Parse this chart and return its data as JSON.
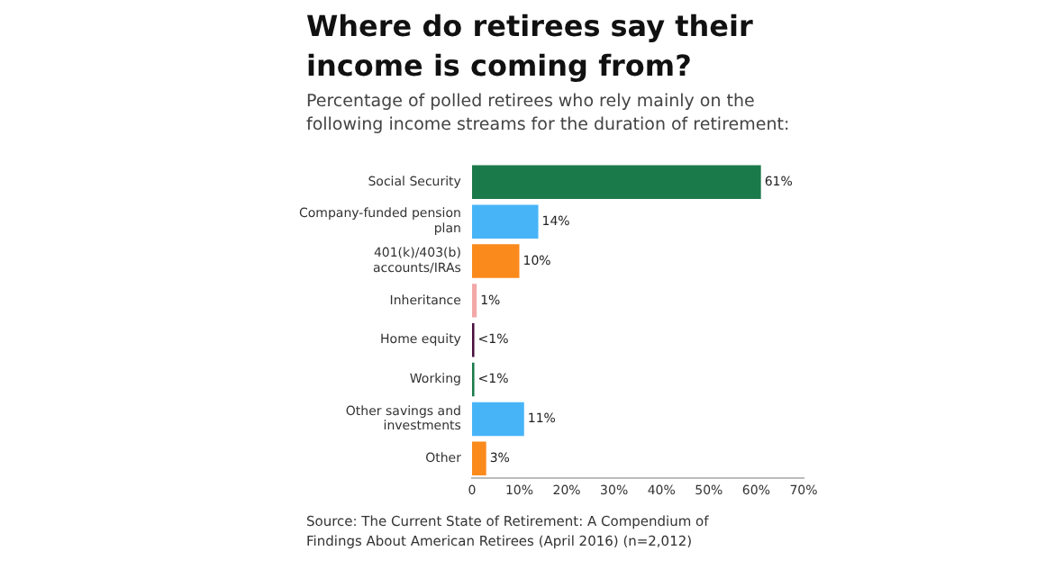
{
  "chart_data": {
    "type": "bar",
    "orientation": "horizontal",
    "title": "Where do retirees say their income is coming from?",
    "subtitle": "Percentage of polled retirees who rely mainly on the following income streams for the duration of retirement:",
    "categories": [
      "Social Security",
      "Company-funded pension plan",
      "401(k)/403(b) accounts/IRAs",
      "Inheritance",
      "Home equity",
      "Working",
      "Other savings and investments",
      "Other"
    ],
    "values": [
      61,
      14,
      10,
      1,
      0.5,
      0.5,
      11,
      3
    ],
    "colors": [
      "#1b7a4a",
      "#48b4f8",
      "#fb8a1d",
      "#f2a8a8",
      "#4a0f3e",
      "#1b7a4a",
      "#48b4f8",
      "#fb8a1d"
    ],
    "value_labels": [
      "61%",
      "14%",
      "10%",
      "1%",
      "<1%",
      "<1%",
      "11%",
      "3%"
    ],
    "xlim": [
      0,
      70
    ],
    "xticks": [
      {
        "value": 0,
        "label": "0"
      },
      {
        "value": 10,
        "label": "10%"
      },
      {
        "value": 20,
        "label": "20%"
      },
      {
        "value": 30,
        "label": "30%"
      },
      {
        "value": 40,
        "label": "40%"
      },
      {
        "value": 50,
        "label": "50%"
      },
      {
        "value": 60,
        "label": "60%"
      },
      {
        "value": 70,
        "label": "70%"
      }
    ],
    "grid": false,
    "legend": false,
    "annotations": [
      "Source: The Current State of Retirement: A Compendium of Findings About American Retirees (April 2016) (n=2,012)"
    ]
  }
}
